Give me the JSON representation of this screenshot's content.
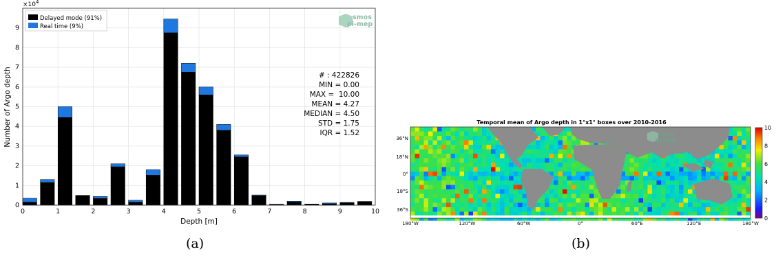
{
  "captions": {
    "a": "(a)",
    "b": "(b)"
  },
  "colors": {
    "delayed": "#000000",
    "realtime": "#1f77e0",
    "watermark": "#6aa890",
    "land": "#8c8c8c"
  },
  "chart_data": [
    {
      "type": "bar",
      "stacked": true,
      "title": "",
      "xlabel": "Depth [m]",
      "ylabel": "Number of Argo depth",
      "y_multiplier": "×10^4",
      "y_multiplier_label": "×10",
      "y_multiplier_exp": "4",
      "xlim": [
        0,
        10
      ],
      "ylim": [
        0,
        100000
      ],
      "grid": true,
      "legend_position": "top-left",
      "x_ticks": [
        "0",
        "1",
        "2",
        "3",
        "4",
        "5",
        "6",
        "7",
        "8",
        "9",
        "10"
      ],
      "y_ticks": [
        "0",
        "1",
        "2",
        "3",
        "4",
        "5",
        "6",
        "7",
        "8",
        "9"
      ],
      "bin_centers": [
        0.2,
        0.7,
        1.2,
        1.7,
        2.2,
        2.7,
        3.2,
        3.7,
        4.2,
        4.7,
        5.2,
        5.7,
        6.2,
        6.7,
        7.2,
        7.7,
        8.2,
        8.7,
        9.2,
        9.7
      ],
      "series": [
        {
          "name": "Delayed mode (91%)",
          "values": [
            1500,
            11500,
            44500,
            4800,
            3400,
            19500,
            1500,
            15200,
            87500,
            67500,
            56000,
            38000,
            24500,
            4800,
            400,
            1600,
            500,
            700,
            1200,
            1700
          ]
        },
        {
          "name": "Real time (9%)",
          "values": [
            2000,
            1500,
            5500,
            200,
            1000,
            1500,
            1000,
            2800,
            7000,
            4500,
            4000,
            3000,
            1000,
            400,
            100,
            400,
            100,
            400,
            200,
            200
          ]
        }
      ],
      "stats": [
        "# : 422826",
        "MIN = 0.00",
        "MAX =  10.00",
        "MEAN = 4.27",
        "MEDIAN = 4.50",
        "STD = 1.75",
        "IQR = 1.52"
      ],
      "watermark": [
        "smos",
        "pi-mep"
      ]
    },
    {
      "type": "heatmap",
      "title": "Temporal mean of Argo depth in 1°x1° boxes over 2010-2016",
      "xlabel": "",
      "ylabel": "",
      "x_ticks": [
        "180°W",
        "120°W",
        "60°W",
        "0°",
        "60°E",
        "120°E",
        "180°W"
      ],
      "y_ticks": [
        "36°N",
        "18°N",
        "0°",
        "18°S",
        "36°S"
      ],
      "colorbar_ticks": [
        "0",
        "2",
        "4",
        "6",
        "8",
        "10"
      ],
      "clim": [
        0,
        10
      ],
      "watermark": [
        "smos",
        "pi-mep"
      ]
    }
  ]
}
